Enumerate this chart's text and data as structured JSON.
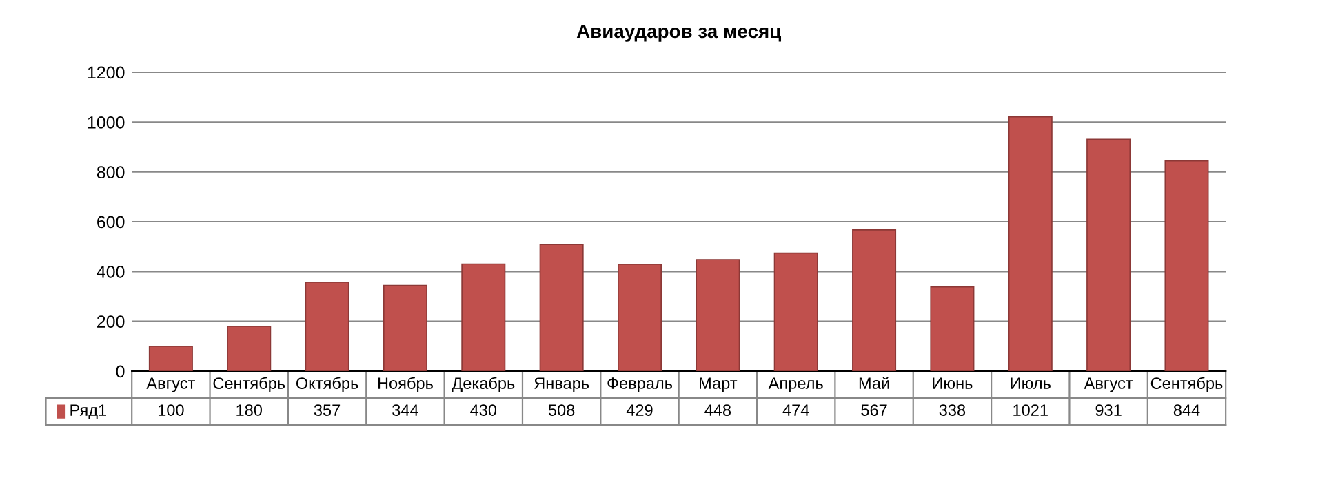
{
  "chart_data": {
    "type": "bar",
    "title": "Авиаударов за месяц",
    "categories": [
      "Август",
      "Сентябрь",
      "Октябрь",
      "Ноябрь",
      "Декабрь",
      "Январь",
      "Февраль",
      "Март",
      "Апрель",
      "Май",
      "Июнь",
      "Июль",
      "Август",
      "Сентябрь"
    ],
    "series": [
      {
        "name": "Ряд1",
        "color": "#c0504d",
        "values": [
          100,
          180,
          357,
          344,
          430,
          508,
          429,
          448,
          474,
          567,
          338,
          1021,
          931,
          844
        ]
      }
    ],
    "ylim": [
      0,
      1200
    ],
    "yticks": [
      0,
      200,
      400,
      600,
      800,
      1000,
      1200
    ],
    "grid": "y",
    "data_labels": true
  }
}
